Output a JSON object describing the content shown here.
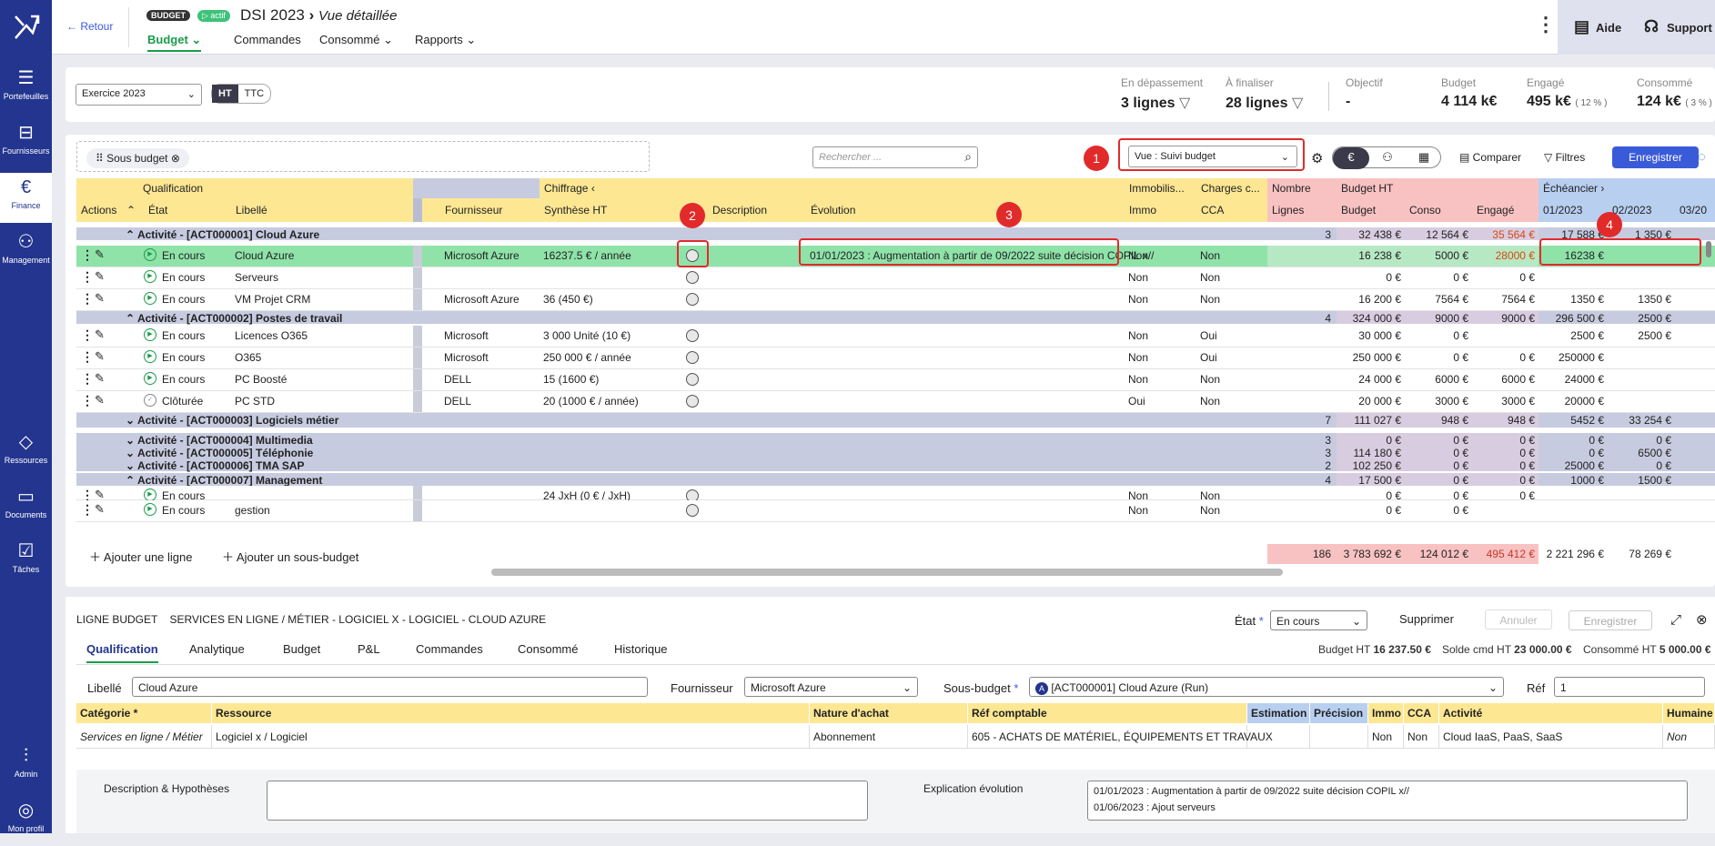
{
  "sidebar": {
    "items": [
      {
        "key": "portefeuilles",
        "label": "Portefeuilles",
        "icon": "portfolio-icon",
        "glyph": "☰"
      },
      {
        "key": "fournisseurs",
        "label": "Fournisseurs",
        "icon": "supplier-icon",
        "glyph": "⊟"
      },
      {
        "key": "finance",
        "label": "Finance",
        "icon": "euro-icon",
        "glyph": "€",
        "active": true
      },
      {
        "key": "management",
        "label": "Management",
        "icon": "people-icon",
        "glyph": "⚇"
      },
      {
        "key": "ressources",
        "label": "Ressources",
        "icon": "shapes-icon",
        "glyph": "◇"
      },
      {
        "key": "documents",
        "label": "Documents",
        "icon": "folder-icon",
        "glyph": "▭"
      },
      {
        "key": "taches",
        "label": "Tâches",
        "icon": "tasks-icon",
        "glyph": "☑"
      },
      {
        "key": "admin",
        "label": "Admin",
        "icon": "sliders-icon",
        "glyph": "⫶"
      },
      {
        "key": "profil",
        "label": "Mon profil",
        "icon": "user-icon",
        "glyph": "◎"
      }
    ]
  },
  "header": {
    "back": "← Retour",
    "badge_budget": "BUDGET",
    "badge_actif": "▷ actif",
    "title": "DSI 2023",
    "subtitle": "Vue détaillée",
    "tabs": [
      "Budget",
      "Commandes",
      "Consommé",
      "Rapports"
    ],
    "help": "Aide",
    "support": "Support"
  },
  "summary": {
    "exercice": "Exercice 2023",
    "ht": "HT",
    "ttc": "TTC",
    "kpis": [
      {
        "label": "En dépassement",
        "value": "3 lignes",
        "filter": true
      },
      {
        "label": "À finaliser",
        "value": "28 lignes",
        "filter": true
      },
      {
        "label": "Objectif",
        "value": "-"
      },
      {
        "label": "Budget",
        "value": "4 114 k€"
      },
      {
        "label": "Engagé",
        "value": "495 k€",
        "pct": "( 12 % )"
      },
      {
        "label": "Consommé",
        "value": "124 k€",
        "pct": "( 3 % )"
      }
    ]
  },
  "toolbar": {
    "chip": "Sous budget",
    "search_placeholder": "Rechercher ...",
    "vue": "Vue : Suivi budget",
    "comparer": "Comparer",
    "filtres": "Filtres",
    "enregistrer": "Enregistrer"
  },
  "annotations": [
    "1",
    "2",
    "3",
    "4"
  ],
  "grid": {
    "groups": {
      "qualification": "Qualification",
      "chiffrage": "Chiffrage",
      "immobilis": "Immobilis...",
      "charges": "Charges c...",
      "nombre": "Nombre",
      "budget_ht": "Budget HT",
      "echeancier": "Échéancier"
    },
    "headers": {
      "actions": "Actions",
      "etat": "État",
      "libelle": "Libellé",
      "fournisseur": "Fournisseur",
      "synthese": "Synthèse HT",
      "description": "Description",
      "evolution": "Évolution",
      "immo": "Immo",
      "cca": "CCA",
      "lignes": "Lignes",
      "budget": "Budget",
      "conso": "Conso",
      "engage": "Engagé",
      "m1": "01/2023",
      "m2": "02/2023",
      "m3": "03/20"
    },
    "rows": [
      {
        "type": "act",
        "label": "Activité - [ACT000001] Cloud Azure",
        "open": true,
        "n": "3",
        "budget": "32 438 €",
        "conso": "12 564 €",
        "engage": "35 564 €",
        "m1": "17 588 €",
        "m2": "1 350 €",
        "over": true
      },
      {
        "type": "line",
        "etat": "En cours",
        "lib": "Cloud Azure",
        "four": "Microsoft Azure",
        "syn": "16237.5 € / année",
        "evo": "01/01/2023 : Augmentation à partir de 09/2022 suite décision COPIL x//",
        "immo": "Non",
        "cca": "Non",
        "budget": "16 238 €",
        "conso": "5000 €",
        "engage": "28000 €",
        "m1": "16238 €",
        "m2": "",
        "sel": true,
        "over": true
      },
      {
        "type": "line",
        "etat": "En cours",
        "lib": "Serveurs",
        "four": "",
        "syn": "",
        "evo": "",
        "immo": "Non",
        "cca": "Non",
        "budget": "0 €",
        "conso": "0 €",
        "engage": "0 €",
        "m1": "",
        "m2": ""
      },
      {
        "type": "line",
        "etat": "En cours",
        "lib": "VM Projet CRM",
        "four": "Microsoft Azure",
        "syn": "36 (450 €)",
        "evo": "",
        "immo": "Non",
        "cca": "Non",
        "budget": "16 200 €",
        "conso": "7564 €",
        "engage": "7564 €",
        "m1": "1350 €",
        "m2": "1350 €"
      },
      {
        "type": "act",
        "label": "Activité - [ACT000002] Postes de travail",
        "open": true,
        "n": "4",
        "budget": "324 000 €",
        "conso": "9000 €",
        "engage": "9000 €",
        "m1": "296 500 €",
        "m2": "2500 €"
      },
      {
        "type": "line",
        "etat": "En cours",
        "lib": "Licences O365",
        "four": "Microsoft",
        "syn": "3 000 Unité (10 €)",
        "evo": "",
        "immo": "Non",
        "cca": "Oui",
        "budget": "30 000 €",
        "conso": "0 €",
        "engage": "",
        "m1": "2500 €",
        "m2": "2500 €"
      },
      {
        "type": "line",
        "etat": "En cours",
        "lib": "O365",
        "four": "Microsoft",
        "syn": "250 000 € / année",
        "evo": "",
        "immo": "Non",
        "cca": "Oui",
        "budget": "250 000 €",
        "conso": "0 €",
        "engage": "0 €",
        "m1": "250000 €",
        "m2": ""
      },
      {
        "type": "line",
        "etat": "En cours",
        "lib": "PC Boosté",
        "four": "DELL",
        "syn": "15 (1600 €)",
        "evo": "",
        "immo": "Non",
        "cca": "Non",
        "budget": "24 000 €",
        "conso": "6000 €",
        "engage": "6000 €",
        "m1": "24000 €",
        "m2": ""
      },
      {
        "type": "line",
        "etat": "Clôturée",
        "lib": "PC STD",
        "four": "DELL",
        "syn": "20 (1000 € / année)",
        "evo": "",
        "immo": "Oui",
        "cca": "Non",
        "budget": "20 000 €",
        "conso": "3000 €",
        "engage": "3000 €",
        "m1": "20000 €",
        "m2": "",
        "closed": true
      },
      {
        "type": "act2",
        "label": "Activité - [ACT000003] Logiciels métier",
        "n": "7",
        "budget": "111 027 €",
        "conso": "948 €",
        "engage": "948 €",
        "m1": "5452 €",
        "m2": "33 254 €"
      },
      {
        "type": "act2",
        "label": "Activité - [ACT000004] Multimedia",
        "n": "3",
        "budget": "0 €",
        "conso": "0 €",
        "engage": "0 €",
        "m1": "0 €",
        "m2": "0 €"
      },
      {
        "type": "act2",
        "label": "Activité - [ACT000005] Téléphonie",
        "n": "3",
        "budget": "114 180 €",
        "conso": "0 €",
        "engage": "0 €",
        "m1": "0 €",
        "m2": "6500 €"
      },
      {
        "type": "act2",
        "label": "Activité - [ACT000006] TMA SAP",
        "n": "2",
        "budget": "102 250 €",
        "conso": "0 €",
        "engage": "0 €",
        "m1": "25000 €",
        "m2": "0 €"
      },
      {
        "type": "act2",
        "label": "Activité - [ACT000007] Management",
        "open": true,
        "n": "4",
        "budget": "17 500 €",
        "conso": "0 €",
        "engage": "0 €",
        "m1": "1000 €",
        "m2": "1500 €"
      },
      {
        "type": "line",
        "etat": "En cours",
        "lib": "",
        "four": "",
        "syn": "24 JxH (0 € / JxH)",
        "evo": "",
        "immo": "Non",
        "cca": "Non",
        "budget": "0 €",
        "conso": "0 €",
        "engage": "0 €",
        "m1": "",
        "m2": ""
      },
      {
        "type": "line",
        "etat": "En cours",
        "lib": "gestion",
        "four": "",
        "syn": "",
        "evo": "",
        "immo": "Non",
        "cca": "Non",
        "budget": "0 €",
        "conso": "0 €",
        "engage": "",
        "m1": "",
        "m2": ""
      }
    ],
    "footer": {
      "add_line": "Ajouter une ligne",
      "add_sub": "Ajouter un sous-budget",
      "n": "186",
      "budget": "3 783 692 €",
      "conso": "124 012 €",
      "engage": "495 412 €",
      "m1": "2 221 296 €",
      "m2": "78 269 €"
    }
  },
  "detail": {
    "title_prefix": "LIGNE BUDGET",
    "title": "SERVICES EN LIGNE / MÉTIER - LOGICIEL X - LOGICIEL - CLOUD AZURE",
    "etat_label": "État",
    "etat_req": "*",
    "etat_value": "En cours",
    "supprimer": "Supprimer",
    "annuler": "Annuler",
    "enregistrer": "Enregistrer",
    "tabs": [
      "Qualification",
      "Analytique",
      "Budget",
      "P&L",
      "Commandes",
      "Consommé",
      "Historique"
    ],
    "budget_ht_label": "Budget HT",
    "budget_ht": "16 237.50 €",
    "solde_label": "Solde cmd HT",
    "solde": "23 000.00 €",
    "conso_label": "Consommé HT",
    "conso": "5 000.00 €",
    "libelle_label": "Libellé",
    "libelle": "Cloud Azure",
    "fournisseur_label": "Fournisseur",
    "fournisseur": "Microsoft Azure",
    "sousbudget_label": "Sous-budget",
    "sousbudget": "[ACT000001] Cloud Azure (Run)",
    "ref_label": "Réf",
    "ref": "1",
    "table_headers": [
      "Catégorie *",
      "Ressource",
      "Nature d'achat",
      "Réf comptable",
      "Estimation",
      "Précision",
      "Immo",
      "CCA",
      "Activité",
      "Humaine"
    ],
    "table_row": [
      "Services en ligne / Métier",
      "Logiciel x / Logiciel",
      "Abonnement",
      "605 - ACHATS DE MATÉRIEL, ÉQUIPEMENTS ET TRAVAUX",
      "",
      "",
      "Non",
      "Non",
      "Cloud IaaS, PaaS, SaaS",
      "Non"
    ],
    "desc_label": "Description & Hypothèses",
    "expl_label": "Explication évolution",
    "expl_lines": [
      "01/01/2023 : Augmentation à partir de 09/2022 suite décision COPIL x//",
      "01/06/2023 : Ajout serveurs"
    ]
  },
  "colors": {
    "sidebar": "#23358e",
    "green": "#1a9c4a",
    "red": "#e12b2b",
    "yellow": "#fde793",
    "blue": "#b8cff0",
    "pink": "#f9c2c2",
    "lavender": "#c7cbe0",
    "selrow": "#8fe3a9",
    "overdue": "#d9480f"
  }
}
